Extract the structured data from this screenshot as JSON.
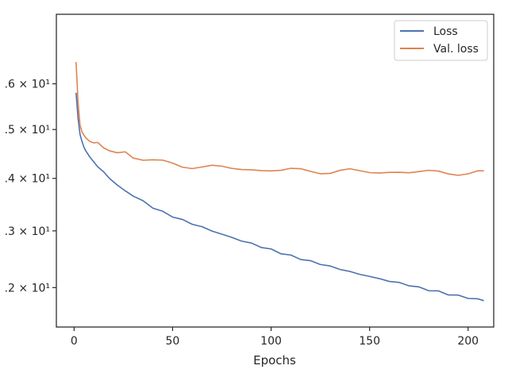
{
  "chart_data": {
    "type": "line",
    "title": "",
    "xlabel": "Epochs",
    "ylabel": "",
    "xlim": [
      -9,
      213
    ],
    "ylim": [
      11.35,
      17.65
    ],
    "yscale": "log",
    "xticks": [
      0,
      50,
      100,
      150,
      200
    ],
    "xtick_labels": [
      "0",
      "50",
      "100",
      "150",
      "200"
    ],
    "yticks": [
      12,
      13,
      14,
      15,
      16
    ],
    "ytick_labels": [
      ".2 × 10¹",
      ".3 × 10¹",
      ".4 × 10¹",
      ".5 × 10¹",
      ".6 × 10¹"
    ],
    "grid": false,
    "legend": "top-right",
    "series": [
      {
        "name": "Loss",
        "color": "#4c72b0",
        "x": [
          1,
          2,
          3,
          4,
          5,
          6,
          8,
          10,
          12,
          15,
          18,
          22,
          26,
          30,
          35,
          40,
          45,
          50,
          55,
          60,
          65,
          70,
          75,
          80,
          85,
          90,
          95,
          100,
          105,
          110,
          115,
          120,
          125,
          130,
          135,
          140,
          145,
          150,
          155,
          160,
          165,
          170,
          175,
          180,
          185,
          190,
          195,
          200,
          205,
          208
        ],
        "y": [
          15.8,
          15.25,
          14.9,
          14.75,
          14.63,
          14.55,
          14.43,
          14.33,
          14.24,
          14.12,
          14.01,
          13.88,
          13.77,
          13.67,
          13.55,
          13.44,
          13.35,
          13.27,
          13.2,
          13.13,
          13.07,
          13.0,
          12.94,
          12.88,
          12.82,
          12.77,
          12.71,
          12.66,
          12.6,
          12.55,
          12.5,
          12.45,
          12.41,
          12.36,
          12.32,
          12.27,
          12.23,
          12.19,
          12.15,
          12.11,
          12.08,
          12.04,
          12.0,
          11.96,
          11.93,
          11.89,
          11.86,
          11.83,
          11.8,
          11.79
        ]
      },
      {
        "name": "Val. loss",
        "color": "#dd8452",
        "x": [
          1,
          2,
          3,
          4,
          5,
          6,
          8,
          10,
          12,
          15,
          18,
          22,
          26,
          30,
          35,
          40,
          45,
          50,
          55,
          60,
          65,
          70,
          75,
          80,
          85,
          90,
          95,
          100,
          105,
          110,
          115,
          120,
          125,
          130,
          135,
          140,
          145,
          150,
          155,
          160,
          165,
          170,
          175,
          180,
          185,
          190,
          195,
          200,
          205,
          208
        ],
        "y": [
          16.5,
          15.6,
          15.1,
          14.95,
          14.88,
          14.82,
          14.75,
          14.72,
          14.68,
          14.62,
          14.58,
          14.53,
          14.48,
          14.44,
          14.38,
          14.34,
          14.31,
          14.29,
          14.27,
          14.25,
          14.23,
          14.22,
          14.21,
          14.2,
          14.19,
          14.18,
          14.17,
          14.17,
          14.16,
          14.16,
          14.15,
          14.15,
          14.15,
          14.14,
          14.14,
          14.14,
          14.13,
          14.13,
          14.13,
          14.13,
          14.13,
          14.12,
          14.12,
          14.12,
          14.12,
          14.12,
          14.12,
          14.11,
          14.11,
          14.15
        ]
      }
    ]
  }
}
